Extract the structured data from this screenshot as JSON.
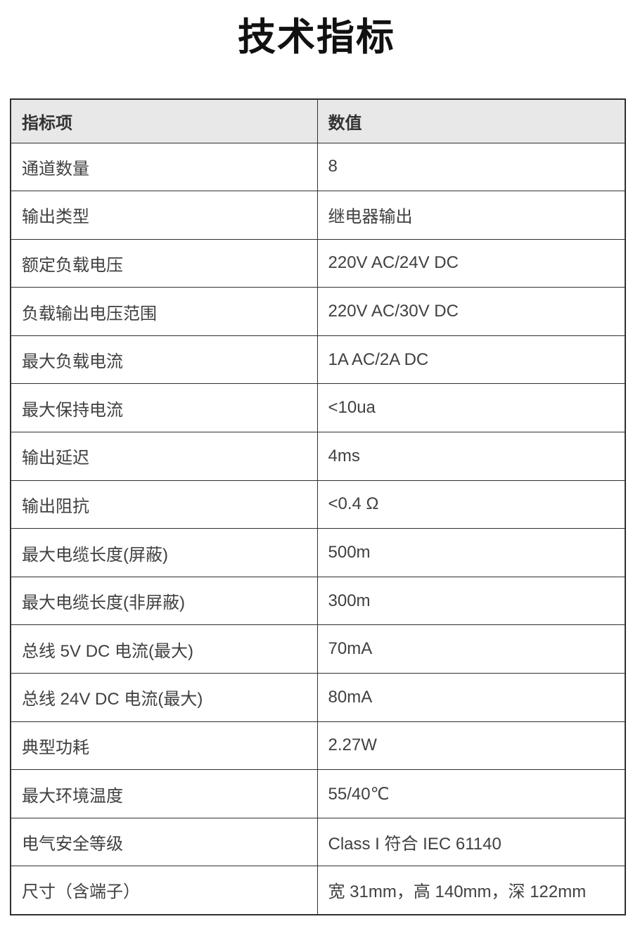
{
  "title": "技术指标",
  "colors": {
    "header_background": "#e8e8e8",
    "table_border": "#2f2f2f",
    "cell_text": "#404040",
    "title_text": "#111111"
  },
  "table": {
    "headers": [
      "指标项",
      "数值"
    ],
    "rows": [
      {
        "label": "通道数量",
        "value": "8"
      },
      {
        "label": "输出类型",
        "value": "继电器输出"
      },
      {
        "label": "额定负载电压",
        "value": "220V AC/24V DC"
      },
      {
        "label": "负载输出电压范围",
        "value": "220V AC/30V DC"
      },
      {
        "label": "最大负载电流",
        "value": "1A AC/2A DC"
      },
      {
        "label": "最大保持电流",
        "value": "<10ua"
      },
      {
        "label": "输出延迟",
        "value": "4ms"
      },
      {
        "label": "输出阻抗",
        "value": "<0.4 Ω"
      },
      {
        "label": "最大电缆长度(屏蔽)",
        "value": "500m"
      },
      {
        "label": "最大电缆长度(非屏蔽)",
        "value": "300m"
      },
      {
        "label": "总线 5V DC 电流(最大)",
        "value": "70mA"
      },
      {
        "label": "总线 24V DC 电流(最大)",
        "value": "80mA"
      },
      {
        "label": "典型功耗",
        "value": "2.27W"
      },
      {
        "label": "最大环境温度",
        "value": "55/40℃"
      },
      {
        "label": "电气安全等级",
        "value": "Class I 符合 IEC 61140"
      },
      {
        "label": "尺寸（含端子）",
        "value": "宽 31mm，高 140mm，深 122mm"
      }
    ]
  }
}
